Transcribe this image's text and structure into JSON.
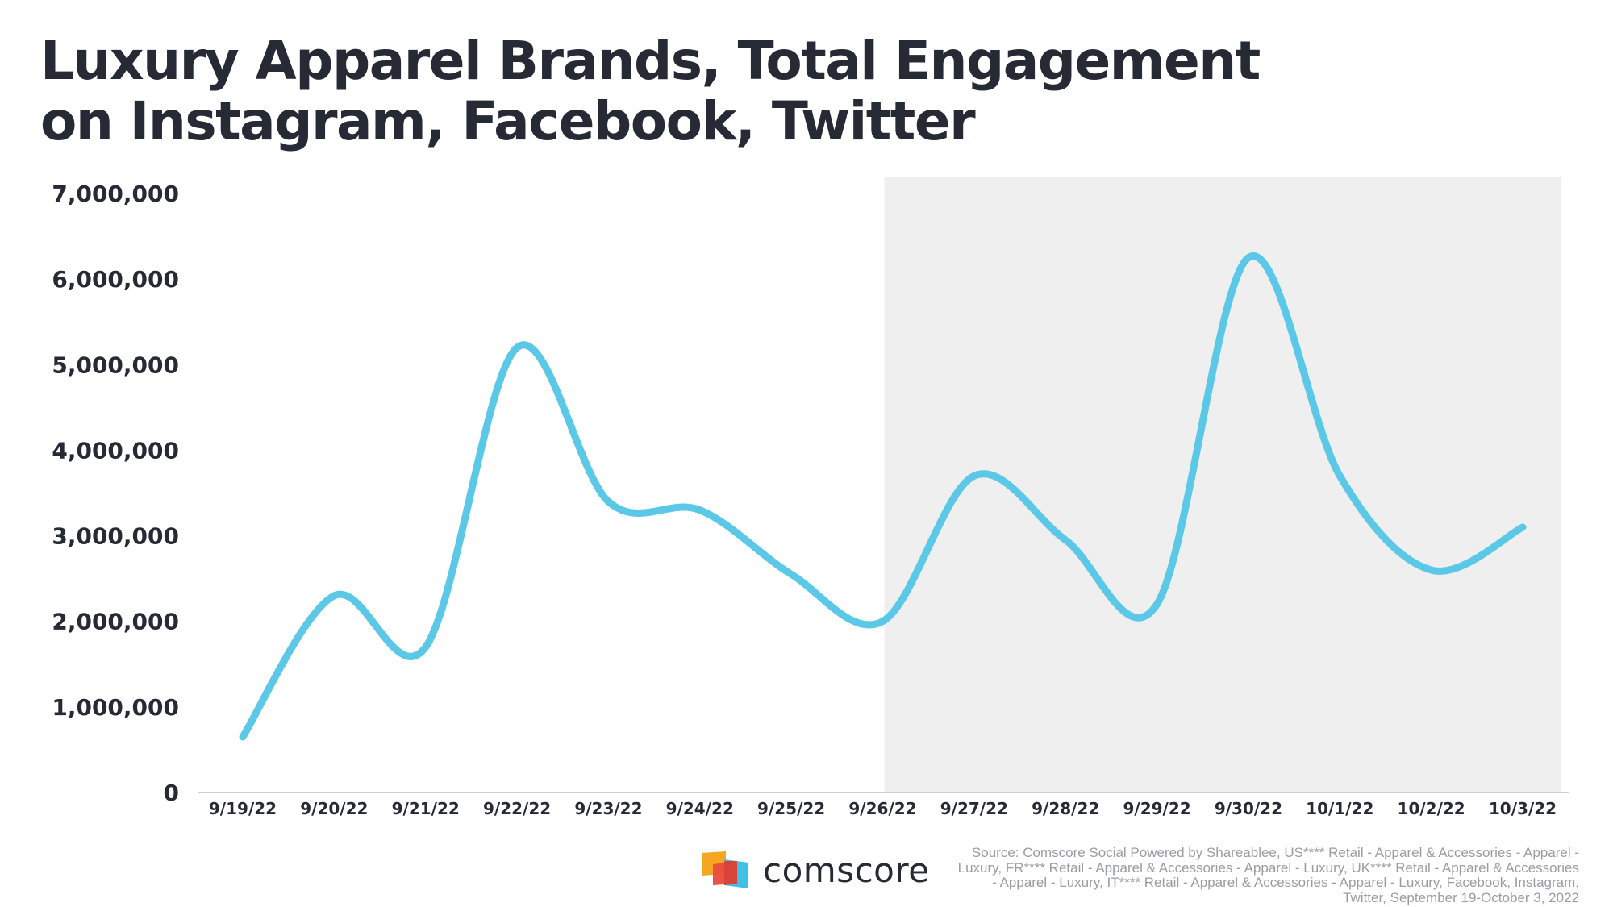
{
  "title": {
    "line1": "Luxury Apparel Brands, Total Engagement",
    "line2": "on Instagram, Facebook, Twitter"
  },
  "footer": {
    "logo_text": "comscore",
    "source": "Source: Comscore Social Powered by Shareablee, US**** Retail - Apparel & Accessories - Apparel - Luxury, FR**** Retail - Apparel & Accessories - Apparel - Luxury, UK**** Retail - Apparel & Accessories - Apparel - Luxury, IT**** Retail - Apparel & Accessories - Apparel - Luxury, Facebook, Instagram, Twitter, September 19-October 3, 2022"
  },
  "chart_data": {
    "type": "line",
    "title": "Luxury Apparel Brands, Total Engagement on Instagram, Facebook, Twitter",
    "xlabel": "",
    "ylabel": "",
    "categories": [
      "9/19/22",
      "9/20/22",
      "9/21/22",
      "9/22/22",
      "9/23/22",
      "9/24/22",
      "9/25/22",
      "9/26/22",
      "9/27/22",
      "9/28/22",
      "9/29/22",
      "9/30/22",
      "10/1/22",
      "10/2/22",
      "10/3/22"
    ],
    "series": [
      {
        "values": [
          650000,
          2300000,
          1700000,
          5200000,
          3400000,
          3300000,
          2550000,
          2000000,
          3700000,
          2950000,
          2200000,
          6250000,
          3700000,
          2600000,
          3100000
        ]
      }
    ],
    "ylim": [
      0,
      7000000
    ],
    "yticks": [
      0,
      1000000,
      2000000,
      3000000,
      4000000,
      5000000,
      6000000,
      7000000
    ],
    "ytick_labels": [
      "0",
      "1,000,000",
      "2,000,000",
      "3,000,000",
      "4,000,000",
      "5,000,000",
      "6,000,000",
      "7,000,000"
    ],
    "highlight_range": [
      "9/26/22",
      "10/3/22"
    ],
    "grid": false,
    "colors": {
      "line": "#5bc8e8",
      "highlight": "#efefef",
      "axis": "#cfcfcf",
      "text": "#262a35"
    }
  }
}
